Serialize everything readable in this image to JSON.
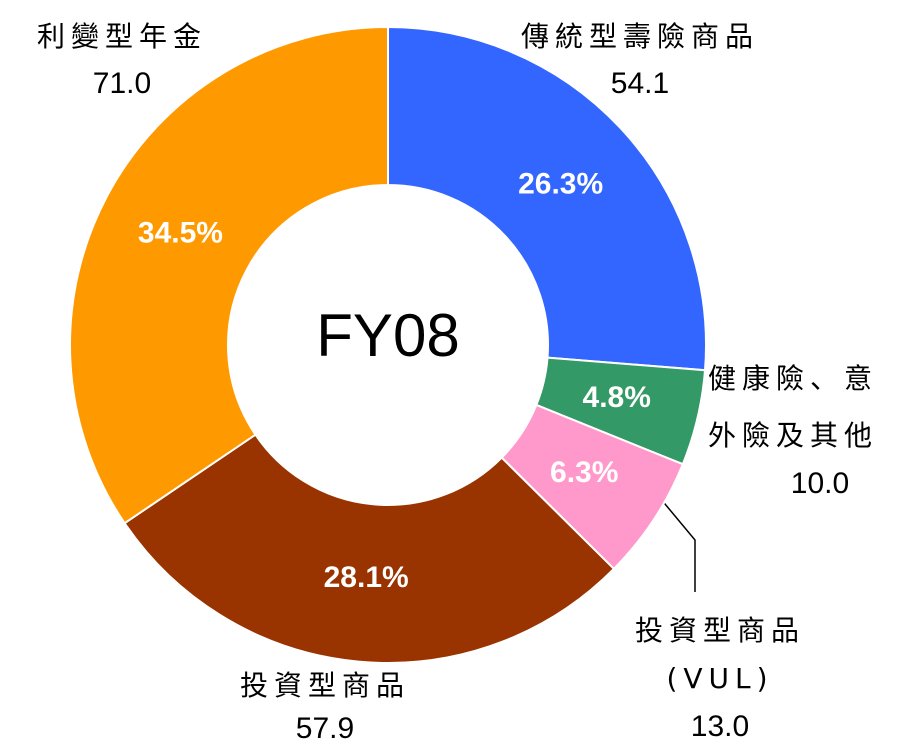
{
  "chart_data": {
    "type": "donut",
    "center_label": "FY08",
    "categories": [
      [
        "傳統型壽險商品"
      ],
      [
        "健康險、意",
        "外險及其他"
      ],
      [
        "投資型商品",
        "(VUL)"
      ],
      [
        "投資型商品"
      ],
      [
        "利變型年金"
      ]
    ],
    "values": [
      54.1,
      10.0,
      13.0,
      57.9,
      71.0
    ],
    "value_labels": [
      "54.1",
      "10.0",
      "13.0",
      "57.9",
      "71.0"
    ],
    "percent": [
      26.3,
      4.8,
      6.3,
      28.1,
      34.5
    ],
    "percent_labels": [
      "26.3%",
      "4.8%",
      "6.3%",
      "28.1%",
      "34.5%"
    ],
    "colors": [
      "#3366ff",
      "#339966",
      "#ff99cc",
      "#993300",
      "#ff9900"
    ]
  }
}
